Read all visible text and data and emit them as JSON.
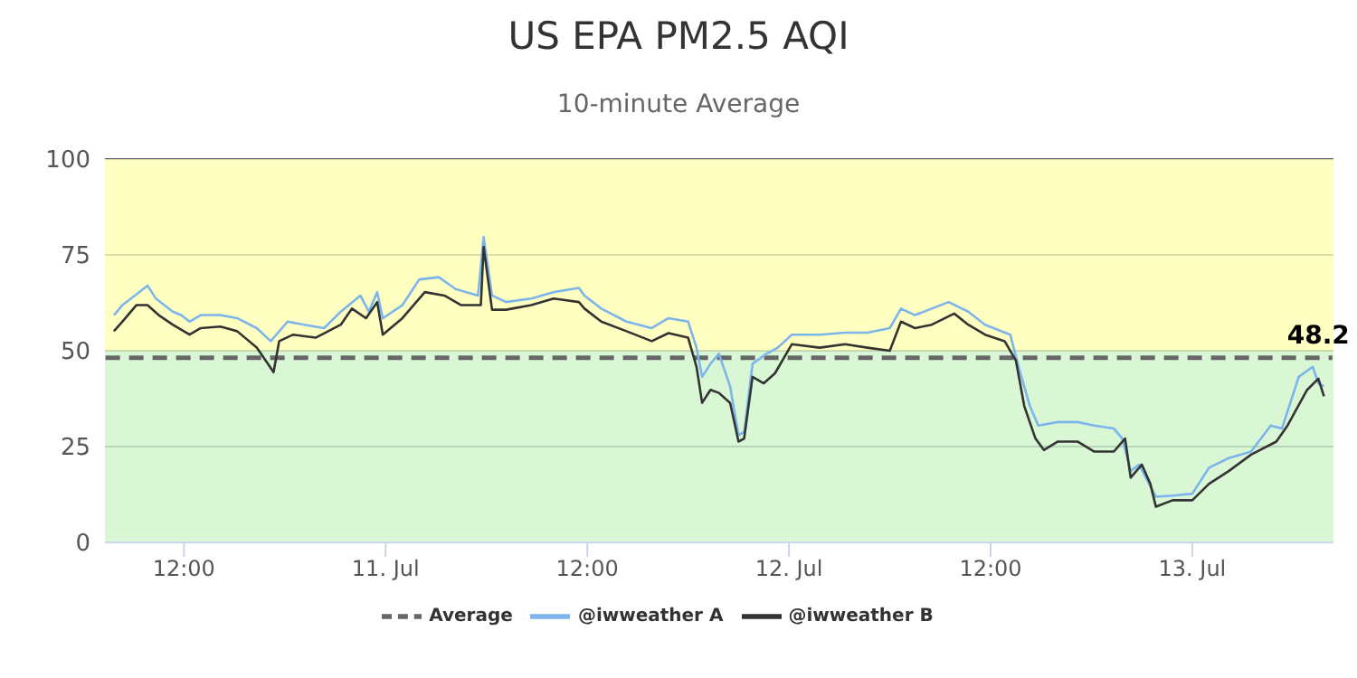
{
  "chart_data": {
    "type": "line",
    "title": "US EPA PM2.5 AQI",
    "subtitle": "10-minute Average",
    "xlim": [
      "--07-10T07:18",
      "--07-13T08:24"
    ],
    "xticks": [
      {
        "value": "--07-10T12:00",
        "label": "12:00"
      },
      {
        "value": "--07-11",
        "label": "11. Jul"
      },
      {
        "value": "--07-11T12:00",
        "label": "12:00"
      },
      {
        "value": "--07-12",
        "label": "12. Jul"
      },
      {
        "value": "--07-12T12:00",
        "label": "12:00"
      },
      {
        "value": "--07-13",
        "label": "13. Jul"
      }
    ],
    "ylim": [
      0,
      100
    ],
    "yticks": [
      0,
      25,
      50,
      75,
      100
    ],
    "grid": "y",
    "legend": "bottom",
    "marker": "none",
    "bands": [
      {
        "axis": "y",
        "from": 0,
        "to": 50,
        "color": "#d9f7d4"
      },
      {
        "axis": "y",
        "from": 50,
        "to": 100,
        "color": "#ffffc2"
      }
    ],
    "annotations": [
      {
        "text": "48.2",
        "x": "--07-13T07:30",
        "y": 48.2
      }
    ],
    "series": [
      {
        "name": "Average",
        "type": "line",
        "line_style": "dashed",
        "color": "#666666",
        "x": [
          "--07-10T07:20",
          "--07-13T08:20"
        ],
        "values": [
          48.2,
          48.2
        ]
      },
      {
        "name": "@iwweather A",
        "color": "#7cb5ec",
        "x": [
          "--07-10T07:50",
          "--07-10T08:20",
          "--07-10T09:10",
          "--07-10T09:50",
          "--07-10T10:20",
          "--07-10T11:20",
          "--07-10T11:50",
          "--07-10T12:20",
          "--07-10T13:00",
          "--07-10T14:10",
          "--07-10T15:10",
          "--07-10T16:20",
          "--07-10T17:10",
          "--07-10T18:10",
          "--07-10T19:10",
          "--07-10T20:20",
          "--07-10T21:20",
          "--07-10T22:30",
          "--07-10T23:00",
          "--07-10T23:30",
          "--07-10T23:50",
          "--07-11T01:00",
          "--07-11T02:00",
          "--07-11T03:10",
          "--07-11T04:10",
          "--07-11T05:30",
          "--07-11T05:50",
          "--07-11T06:20",
          "--07-11T07:10",
          "--07-11T08:40",
          "--07-11T10:00",
          "--07-11T11:30",
          "--07-11T11:50",
          "--07-11T12:50",
          "--07-11T14:20",
          "--07-11T15:50",
          "--07-11T16:50",
          "--07-11T18:00",
          "--07-11T18:30",
          "--07-11T18:50",
          "--07-11T19:20",
          "--07-11T19:50",
          "--07-11T20:30",
          "--07-11T21:00",
          "--07-11T21:20",
          "--07-11T21:50",
          "--07-11T22:40",
          "--07-11T23:20",
          "--07-12T00:10",
          "--07-12T01:50",
          "--07-12T03:20",
          "--07-12T04:40",
          "--07-12T06:00",
          "--07-12T06:40",
          "--07-12T07:30",
          "--07-12T08:30",
          "--07-12T09:30",
          "--07-12T10:40",
          "--07-12T11:40",
          "--07-12T13:10",
          "--07-12T13:40",
          "--07-12T14:20",
          "--07-12T14:50",
          "--07-12T16:00",
          "--07-12T17:10",
          "--07-12T18:10",
          "--07-12T19:20",
          "--07-12T19:50",
          "--07-12T20:20",
          "--07-12T20:50",
          "--07-12T21:50",
          "--07-12T22:50",
          "--07-13T00:00",
          "--07-13T01:00",
          "--07-13T02:10",
          "--07-13T03:30",
          "--07-13T04:40",
          "--07-13T05:20",
          "--07-13T06:20",
          "--07-13T07:10",
          "--07-13T07:30",
          "--07-13T07:50"
        ],
        "values": [
          59.3,
          61.9,
          64.7,
          67,
          63.6,
          60.2,
          59.3,
          57.6,
          59.3,
          59.3,
          58.5,
          55.9,
          52.5,
          57.6,
          56.8,
          55.9,
          60.2,
          64.4,
          60.2,
          65.3,
          58.5,
          61.9,
          68.6,
          69.2,
          66.1,
          64.4,
          79.7,
          64.4,
          62.7,
          63.6,
          65.3,
          66.4,
          64.4,
          61,
          57.6,
          55.9,
          58.5,
          57.6,
          50.8,
          43.2,
          46.6,
          49.2,
          40.7,
          28,
          28.8,
          46.6,
          49.2,
          50.8,
          54.2,
          54.2,
          54.7,
          54.7,
          55.9,
          61,
          59.3,
          61,
          62.7,
          60.2,
          56.8,
          54.2,
          45.8,
          35.6,
          30.5,
          31.4,
          31.4,
          30.5,
          29.7,
          27.1,
          18.6,
          20.3,
          11.9,
          12.2,
          12.7,
          19.5,
          22,
          23.7,
          30.5,
          29.7,
          43.2,
          45.8,
          41.5,
          40.7
        ]
      },
      {
        "name": "@iwweather B",
        "color": "#333333",
        "x": [
          "--07-10T07:50",
          "--07-10T08:20",
          "--07-10T09:10",
          "--07-10T09:50",
          "--07-10T10:30",
          "--07-10T11:20",
          "--07-10T12:20",
          "--07-10T13:00",
          "--07-10T14:10",
          "--07-10T15:10",
          "--07-10T16:20",
          "--07-10T17:00",
          "--07-10T17:20",
          "--07-10T17:40",
          "--07-10T18:30",
          "--07-10T19:50",
          "--07-10T21:20",
          "--07-10T22:00",
          "--07-10T22:50",
          "--07-10T23:30",
          "--07-10T23:50",
          "--07-11T01:00",
          "--07-11T02:20",
          "--07-11T03:30",
          "--07-11T04:30",
          "--07-11T05:40",
          "--07-11T05:50",
          "--07-11T06:20",
          "--07-11T07:10",
          "--07-11T08:40",
          "--07-11T10:00",
          "--07-11T11:30",
          "--07-11T11:50",
          "--07-11T12:50",
          "--07-11T14:20",
          "--07-11T15:50",
          "--07-11T16:50",
          "--07-11T18:00",
          "--07-11T18:30",
          "--07-11T18:50",
          "--07-11T19:20",
          "--07-11T19:50",
          "--07-11T20:30",
          "--07-11T21:00",
          "--07-11T21:20",
          "--07-11T21:50",
          "--07-11T22:30",
          "--07-11T23:10",
          "--07-12T00:10",
          "--07-12T01:50",
          "--07-12T03:20",
          "--07-12T04:40",
          "--07-12T06:00",
          "--07-12T06:40",
          "--07-12T07:30",
          "--07-12T08:30",
          "--07-12T09:50",
          "--07-12T10:40",
          "--07-12T11:40",
          "--07-12T12:50",
          "--07-12T13:30",
          "--07-12T14:00",
          "--07-12T14:40",
          "--07-12T15:10",
          "--07-12T16:00",
          "--07-12T17:10",
          "--07-12T18:10",
          "--07-12T19:20",
          "--07-12T20:00",
          "--07-12T20:20",
          "--07-12T21:00",
          "--07-12T21:30",
          "--07-12T21:50",
          "--07-12T22:50",
          "--07-13T00:00",
          "--07-13T01:00",
          "--07-13T02:10",
          "--07-13T03:30",
          "--07-13T05:00",
          "--07-13T05:40",
          "--07-13T06:50",
          "--07-13T07:30",
          "--07-13T07:50"
        ],
        "values": [
          55.1,
          57.6,
          61.9,
          61.9,
          59.3,
          56.8,
          54.2,
          55.9,
          56.3,
          55.1,
          50.8,
          46.6,
          44.4,
          52.5,
          54.2,
          53.4,
          56.8,
          61,
          58.5,
          62.7,
          54.2,
          58.5,
          65.3,
          64.4,
          61.9,
          61.9,
          77.1,
          60.7,
          60.7,
          61.9,
          63.6,
          62.7,
          61,
          57.6,
          55.1,
          52.5,
          54.6,
          53.4,
          45.8,
          36.4,
          39.8,
          39,
          36.4,
          26.3,
          27.1,
          43.2,
          41.5,
          44.1,
          51.7,
          50.8,
          51.7,
          50.8,
          50,
          57.6,
          55.9,
          56.8,
          59.7,
          56.8,
          54.2,
          52.5,
          47.5,
          35.6,
          27.1,
          24.1,
          26.3,
          26.3,
          23.7,
          23.7,
          27.1,
          16.9,
          20.3,
          15.3,
          9.3,
          11,
          11,
          15.3,
          18.6,
          22.9,
          26.3,
          30.5,
          39.8,
          42.7,
          38.1
        ]
      }
    ]
  }
}
